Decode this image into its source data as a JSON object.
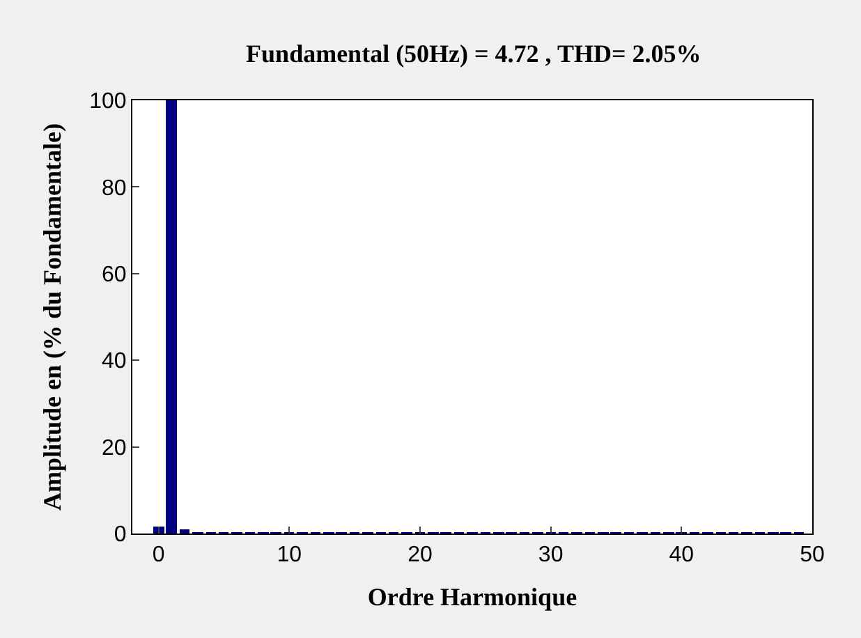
{
  "chart_data": {
    "type": "bar",
    "title": "Fundamental (50Hz) = 4.72 , THD= 2.05%",
    "xlabel": "Ordre Harmonique",
    "ylabel": "Amplitude en (% du Fondamentale)",
    "x": [
      0,
      1,
      2,
      3,
      4,
      5,
      6,
      7,
      8,
      9,
      10,
      11,
      12,
      13,
      14,
      15,
      16,
      17,
      18,
      19,
      20,
      21,
      22,
      23,
      24,
      25,
      26,
      27,
      28,
      29,
      30,
      31,
      32,
      33,
      34,
      35,
      36,
      37,
      38,
      39,
      40,
      41,
      42,
      43,
      44,
      45,
      46,
      47,
      48,
      49
    ],
    "values": [
      1.5,
      100,
      1,
      0.3,
      0.3,
      0.3,
      0.3,
      0.3,
      0.3,
      0.3,
      0.3,
      0.3,
      0.3,
      0.3,
      0.3,
      0.3,
      0.3,
      0.3,
      0.3,
      0.3,
      0.3,
      0.3,
      0.3,
      0.3,
      0.3,
      0.3,
      0.3,
      0.3,
      0.3,
      0.3,
      0.3,
      0.3,
      0.3,
      0.3,
      0.3,
      0.3,
      0.3,
      0.3,
      0.3,
      0.3,
      0.3,
      0.3,
      0.3,
      0.3,
      0.3,
      0.3,
      0.3,
      0.3,
      0.3,
      0.3
    ],
    "color": "#000080",
    "xlim": [
      -2,
      50
    ],
    "xticks": [
      0,
      10,
      20,
      30,
      40,
      50
    ],
    "ylim": [
      0,
      100
    ],
    "yticks": [
      0,
      20,
      40,
      60,
      80,
      100
    ]
  }
}
